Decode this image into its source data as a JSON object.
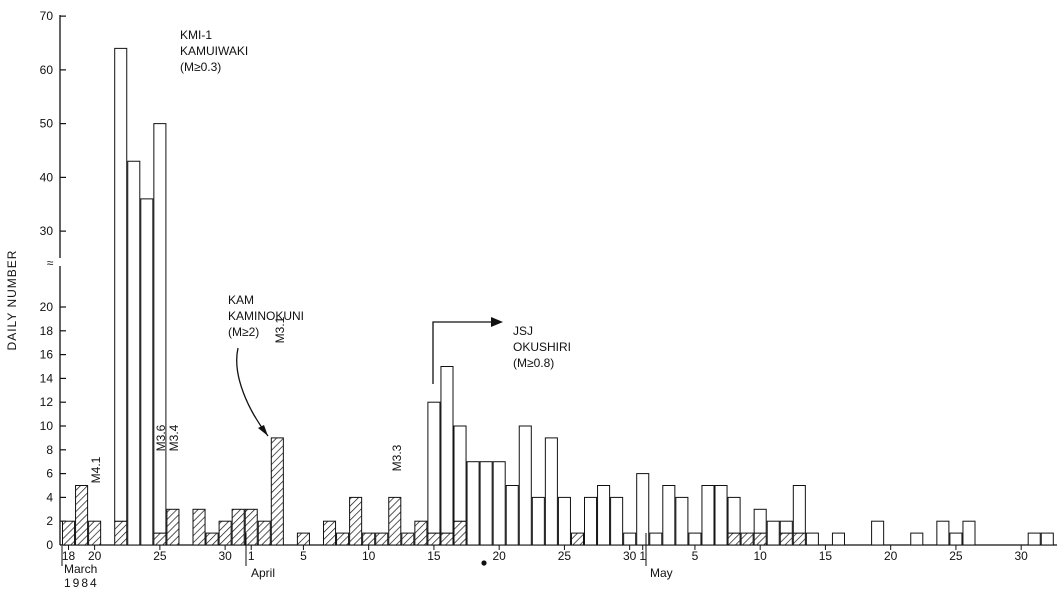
{
  "chart_data": {
    "type": "bar",
    "ylabel": "DAILY NUMBER",
    "y_axis_break": "≈",
    "y_ticks_lower": [
      0,
      2,
      4,
      6,
      8,
      10,
      12,
      14,
      16,
      18,
      20
    ],
    "y_ticks_upper": [
      30,
      40,
      50,
      60,
      70
    ],
    "ylim_lower": [
      0,
      21
    ],
    "ylim_upper": [
      25,
      70
    ],
    "x_day_ticks": [
      "18",
      "20",
      "25",
      "30",
      "1",
      "5",
      "10",
      "15",
      "20",
      "25",
      "30",
      "1",
      "5",
      "10",
      "15",
      "20",
      "25",
      "30"
    ],
    "month_labels": {
      "march": "March",
      "year": "1984",
      "april": "April",
      "may": "May"
    },
    "start_date": "1984-03-18",
    "series": [
      {
        "name": "KMI-1 KAMUIWAKI (M≥0.3)",
        "pattern": "hatched",
        "values": [
          2,
          5,
          2,
          0,
          2,
          0,
          0,
          1,
          3,
          0,
          3,
          1,
          2,
          3,
          3,
          2,
          9,
          0,
          1,
          0,
          2,
          1,
          4,
          1,
          1,
          4,
          1,
          2,
          1,
          1,
          2,
          0,
          0,
          0,
          0,
          0,
          0,
          0,
          0,
          0,
          0,
          0,
          0,
          0,
          0,
          0,
          0,
          0,
          0,
          0,
          0,
          0,
          0,
          0,
          0,
          0,
          0,
          0,
          0,
          0,
          0,
          0,
          0,
          0,
          0,
          0,
          0,
          0,
          0,
          0,
          0,
          0,
          0,
          0,
          0,
          0,
          0
        ]
      },
      {
        "name": "KAM KAMINOKUNI (M≥2)",
        "pattern": "hatched",
        "values": [
          0,
          0,
          0,
          0,
          0,
          0,
          0,
          0,
          0,
          0,
          0,
          0,
          0,
          0,
          0,
          0,
          0,
          0,
          0,
          0,
          0,
          0,
          0,
          0,
          0,
          0,
          0,
          0,
          0,
          0,
          0,
          0,
          0,
          0,
          0,
          0,
          0,
          0,
          0,
          1,
          0,
          0,
          0,
          0,
          0,
          0,
          0,
          0,
          0,
          0,
          0,
          1,
          1,
          1,
          0,
          1,
          1,
          0,
          0,
          0,
          0,
          0,
          0,
          0,
          0,
          0,
          0,
          0,
          0,
          0,
          0,
          0,
          0,
          0,
          0,
          0,
          0
        ]
      },
      {
        "name": "JSJ OKUSHIRI (M≥0.8)",
        "pattern": "open",
        "values": [
          0,
          0,
          0,
          0,
          62,
          43,
          36,
          49,
          0,
          0,
          0,
          0,
          0,
          0,
          0,
          0,
          0,
          0,
          0,
          0,
          0,
          0,
          0,
          0,
          0,
          0,
          0,
          0,
          11,
          14,
          8,
          7,
          7,
          7,
          5,
          10,
          4,
          9,
          4,
          0,
          4,
          5,
          4,
          1,
          6,
          1,
          5,
          4,
          1,
          5,
          5,
          3,
          0,
          2,
          2,
          1,
          4,
          1,
          0,
          1,
          0,
          0,
          2,
          0,
          0,
          1,
          0,
          2,
          1,
          2,
          0,
          0,
          0,
          0,
          1,
          1,
          0
        ]
      }
    ],
    "annotations": [
      {
        "text": "M4.1",
        "day": 20
      },
      {
        "text": "M3.6",
        "day": 25
      },
      {
        "text": "M3.4",
        "day": 26
      },
      {
        "text": "M3.1",
        "day": 34
      },
      {
        "text": "M3.3",
        "day": 43
      }
    ],
    "station_labels": [
      {
        "lines": [
          "KMI-1",
          "KAMUIWAKI",
          "(M≥0.3)"
        ]
      },
      {
        "lines": [
          "KAM",
          "KAMINOKUNI",
          "(M≥2)"
        ]
      },
      {
        "lines": [
          "JSJ",
          "OKUSHIRI",
          "(M≥0.8)"
        ]
      }
    ],
    "legend": "none",
    "grid": false
  }
}
